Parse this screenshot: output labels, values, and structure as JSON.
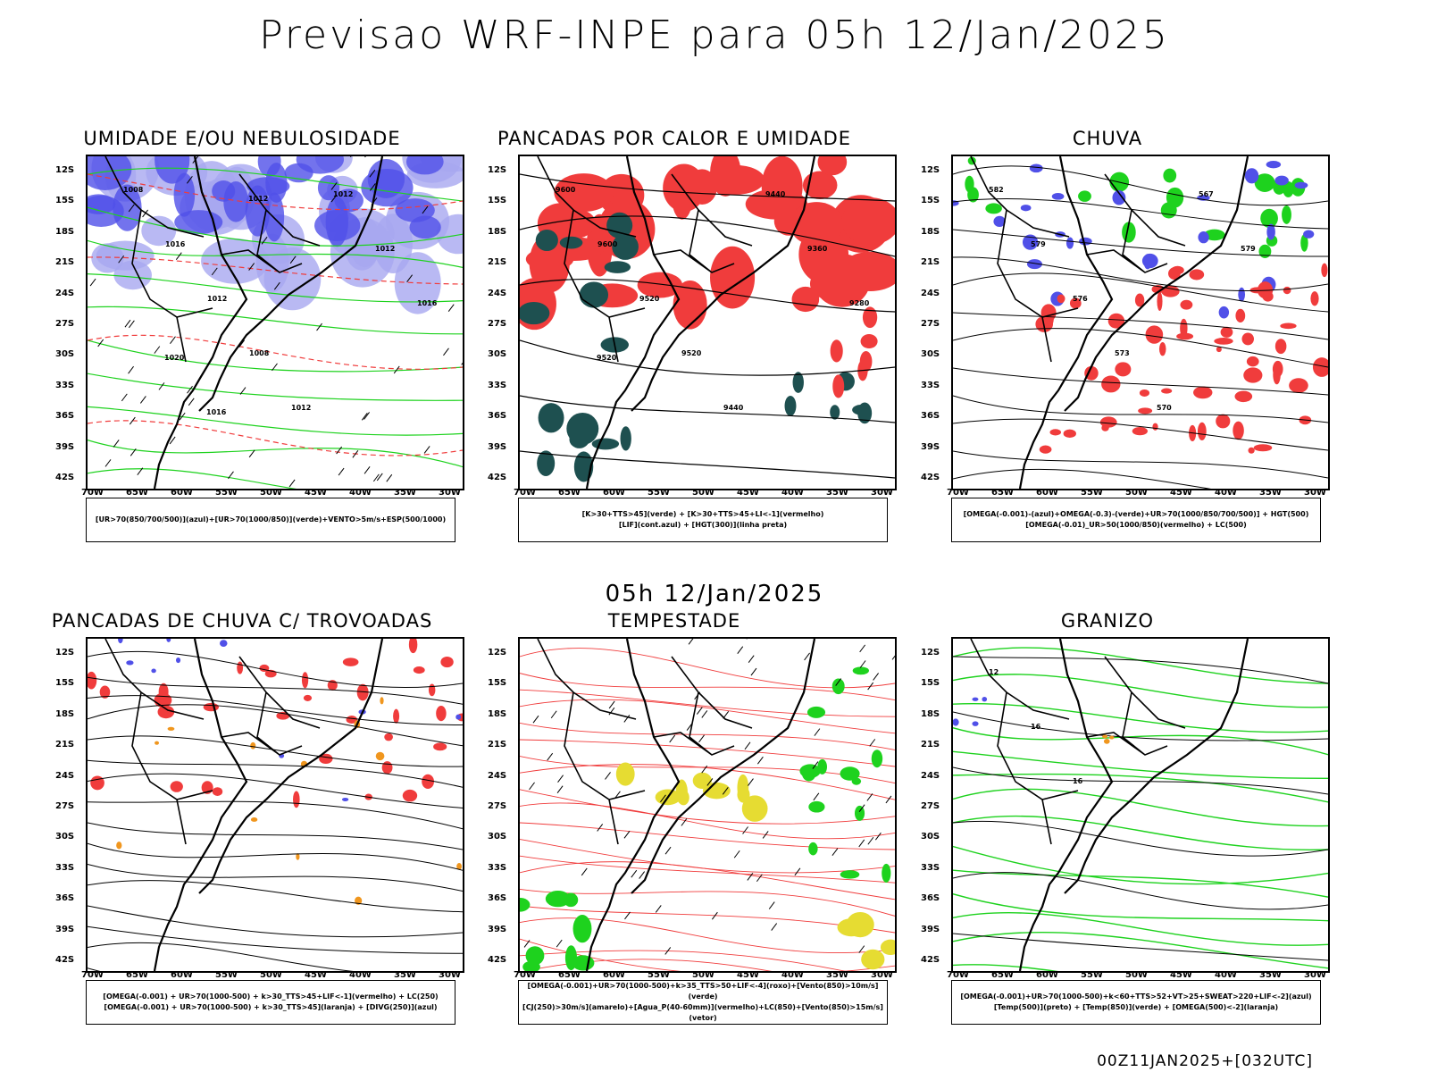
{
  "title": "Previsao WRF-INPE  para 05h 12/Jan/2025",
  "subtitle": "05h 12/Jan/2025",
  "footer": "00Z11JAN2025+[032UTC]",
  "lat_labels": [
    "12S",
    "15S",
    "18S",
    "21S",
    "24S",
    "27S",
    "30S",
    "33S",
    "36S",
    "39S",
    "42S"
  ],
  "lon_labels": [
    "70W",
    "65W",
    "60W",
    "55W",
    "50W",
    "45W",
    "40W",
    "35W",
    "30W"
  ],
  "panels": [
    {
      "title": "UMIDADE E/OU NEBULOSIDADE",
      "legend": [
        "[UR>70(850/700/500)](azul)+[UR>70(1000/850)](verde)+VENTO>5m/s+ESP(500/1000)"
      ],
      "contour_labels": [
        "1008",
        "1016",
        "1012",
        "1008",
        "1012",
        "1012",
        "1012",
        "1016",
        "1020",
        "1016",
        "1012"
      ]
    },
    {
      "title": "PANCADAS POR CALOR E UMIDADE",
      "legend": [
        "[K>30+TTS>45](verde) + [K>30+TTS>45+LI<-1](vermelho)",
        "[LIF](cont.azul) + [HGT(300)](linha preta)"
      ],
      "contour_labels": [
        "9600",
        "9600",
        "9520",
        "9520",
        "9440",
        "9440",
        "9360",
        "9280",
        "9520"
      ]
    },
    {
      "title": "CHUVA",
      "legend": [
        "[OMEGA(-0.001)-(azul)+OMEGA(-0.3)-(verde)+UR>70(1000/850/700/500)] + HGT(500)",
        "[OMEGA(-0.01)_UR>50(1000/850)(vermelho) + LC(500)"
      ],
      "contour_labels": [
        "582",
        "579",
        "576",
        "573",
        "570",
        "567",
        "579"
      ]
    },
    {
      "title": "PANCADAS DE CHUVA C/ TROVOADAS",
      "legend": [
        "[OMEGA(-0.001) + UR>70(1000-500) + k>30_TTS>45+LIF<-1](vermelho) + LC(250)",
        "[OMEGA(-0.001) + UR>70(1000-500) + k>30_TTS>45](laranja) + [DIVG(250)](azul)"
      ],
      "contour_labels": []
    },
    {
      "title": "TEMPESTADE",
      "legend": [
        "[OMEGA(-0.001)+UR>70(1000-500)+k>35_TTS>50+LIF<-4](roxo)+[Vento(850)>10m/s](verde)",
        "[CJ(250)>30m/s](amarelo)+[Agua_P(40-60mm)](vermelho)+LC(850)+[Vento(850)>15m/s](vetor)"
      ],
      "contour_labels": []
    },
    {
      "title": "GRANIZO",
      "legend": [
        "[OMEGA(-0.001)+UR>70(1000-500)+k<60+TTS>52+VT>25+SWEAT>220+LIF<-2](azul)",
        "[Temp(500)](preto) + [Temp(850)](verde) + [OMEGA(500)<-2](laranja)"
      ],
      "contour_labels": [
        "12",
        "16",
        "16"
      ]
    }
  ],
  "colors": {
    "blue": "#5050e8",
    "lightblue": "#a8a8f0",
    "green": "#1ed21e",
    "red": "#f03c3c",
    "darkteal": "#1e5050",
    "orange": "#f0961e",
    "yellow": "#e6dc32",
    "black": "#000000"
  }
}
